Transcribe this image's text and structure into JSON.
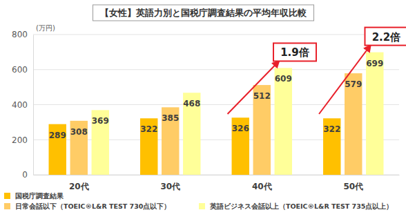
{
  "chart_data": {
    "type": "bar",
    "title": "【女性】英語力別と国税庁調査結果の平均年収比較",
    "y_label": "(万円)",
    "categories": [
      "20代",
      "30代",
      "40代",
      "50代"
    ],
    "series": [
      {
        "name": "国税庁調査結果",
        "color": "#ffc000",
        "values": [
          289,
          322,
          326,
          322
        ]
      },
      {
        "name": "日常会話以下（TOEIC®L&R TEST 730点以下）",
        "color": "#ffcc66",
        "values": [
          308,
          385,
          512,
          579
        ]
      },
      {
        "name": "英語ビジネス会話以上（TOEIC®L&R TEST 735点以上）",
        "color": "#ffff99",
        "values": [
          369,
          468,
          609,
          699
        ]
      }
    ],
    "ylim": [
      0,
      800
    ],
    "yticks": [
      0,
      200,
      400,
      600,
      800
    ],
    "grid": true,
    "data_labels": true,
    "legend": "bottom",
    "annotations": [
      "1.9倍",
      "2.2倍"
    ]
  }
}
